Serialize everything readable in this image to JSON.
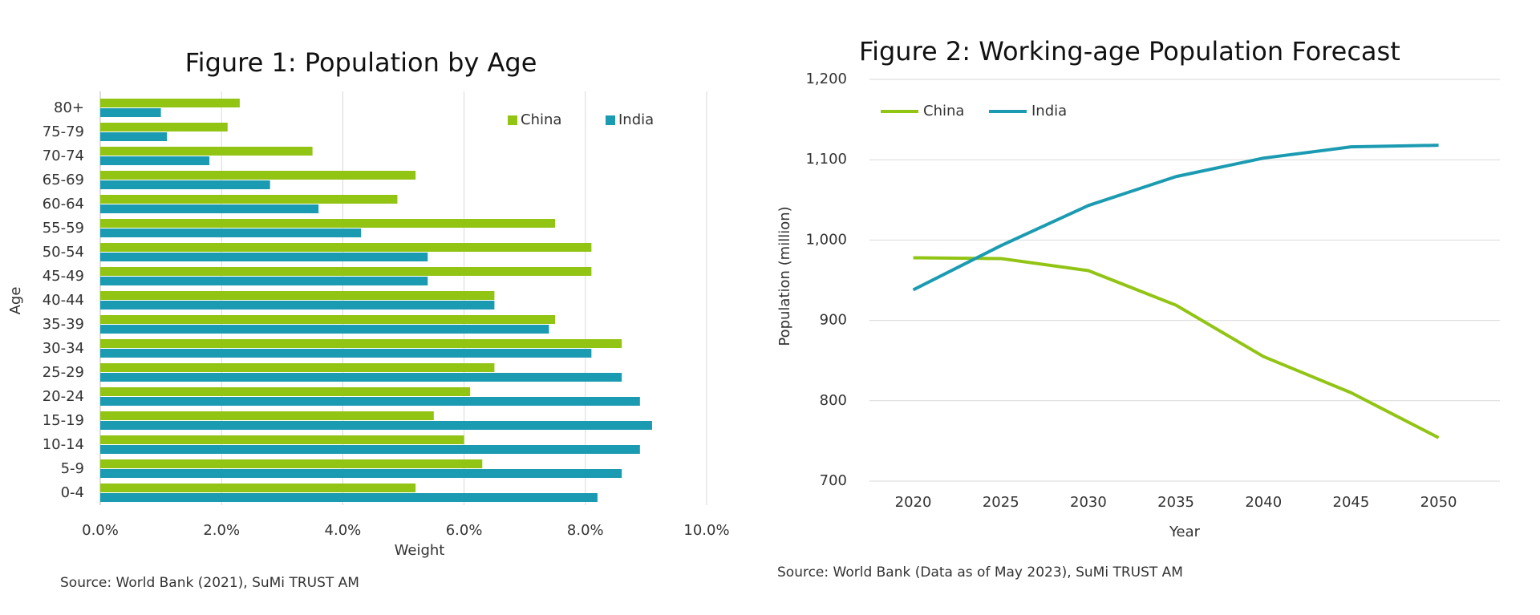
{
  "chart_data": [
    {
      "type": "bar",
      "horizontal": true,
      "title": "Figure 1: Population by Age",
      "x_label": "Weight",
      "y_label": "Age",
      "source": "Source: World Bank (2021), SuMi TRUST AM",
      "categories": [
        "80+",
        "75-79",
        "70-74",
        "65-69",
        "60-64",
        "55-59",
        "50-54",
        "45-49",
        "40-44",
        "35-39",
        "30-34",
        "25-29",
        "20-24",
        "15-19",
        "10-14",
        "5-9",
        "0-4"
      ],
      "series": [
        {
          "name": "China",
          "color": "#92c414",
          "values": [
            2.3,
            2.1,
            3.5,
            5.2,
            4.9,
            7.5,
            8.1,
            8.1,
            6.5,
            7.5,
            8.6,
            6.5,
            6.1,
            5.5,
            6.0,
            6.3,
            5.2
          ]
        },
        {
          "name": "India",
          "color": "#1b9bb2",
          "values": [
            1.0,
            1.1,
            1.8,
            2.8,
            3.6,
            4.3,
            5.4,
            5.4,
            6.5,
            7.4,
            8.1,
            8.6,
            8.9,
            9.1,
            8.9,
            8.6,
            8.2
          ]
        }
      ],
      "xlim": [
        0,
        10
      ],
      "xticks": [
        {
          "value": 0,
          "label": "0.0%"
        },
        {
          "value": 2,
          "label": "2.0%"
        },
        {
          "value": 4,
          "label": "4.0%"
        },
        {
          "value": 6,
          "label": "6.0%"
        },
        {
          "value": 8,
          "label": "8.0%"
        },
        {
          "value": 10,
          "label": "10.0%"
        }
      ],
      "grid": true,
      "legend": "top-right"
    },
    {
      "type": "line",
      "title": "Figure 2: Working-age Population Forecast",
      "x_label": "Year",
      "y_label": "Population (million)",
      "source": "Source: World Bank (Data as of May 2023), SuMi TRUST AM",
      "x": [
        2020,
        2025,
        2030,
        2035,
        2040,
        2045,
        2050
      ],
      "series": [
        {
          "name": "China",
          "color": "#92c414",
          "values": [
            978,
            977,
            962,
            919,
            855,
            810,
            754
          ]
        },
        {
          "name": "India",
          "color": "#1b9bb2",
          "values": [
            938,
            993,
            1043,
            1079,
            1102,
            1116,
            1118
          ]
        }
      ],
      "xlim": [
        2017.5,
        2053.5
      ],
      "xticks": [
        2020,
        2025,
        2030,
        2035,
        2040,
        2045,
        2050
      ],
      "ylim": [
        700,
        1200
      ],
      "yticks": [
        700,
        800,
        900,
        {
          "value": 1000,
          "label": "1,000"
        },
        {
          "value": 1100,
          "label": "1,100"
        },
        {
          "value": 1200,
          "label": "1,200"
        }
      ],
      "grid": true,
      "legend": "top-left"
    }
  ]
}
